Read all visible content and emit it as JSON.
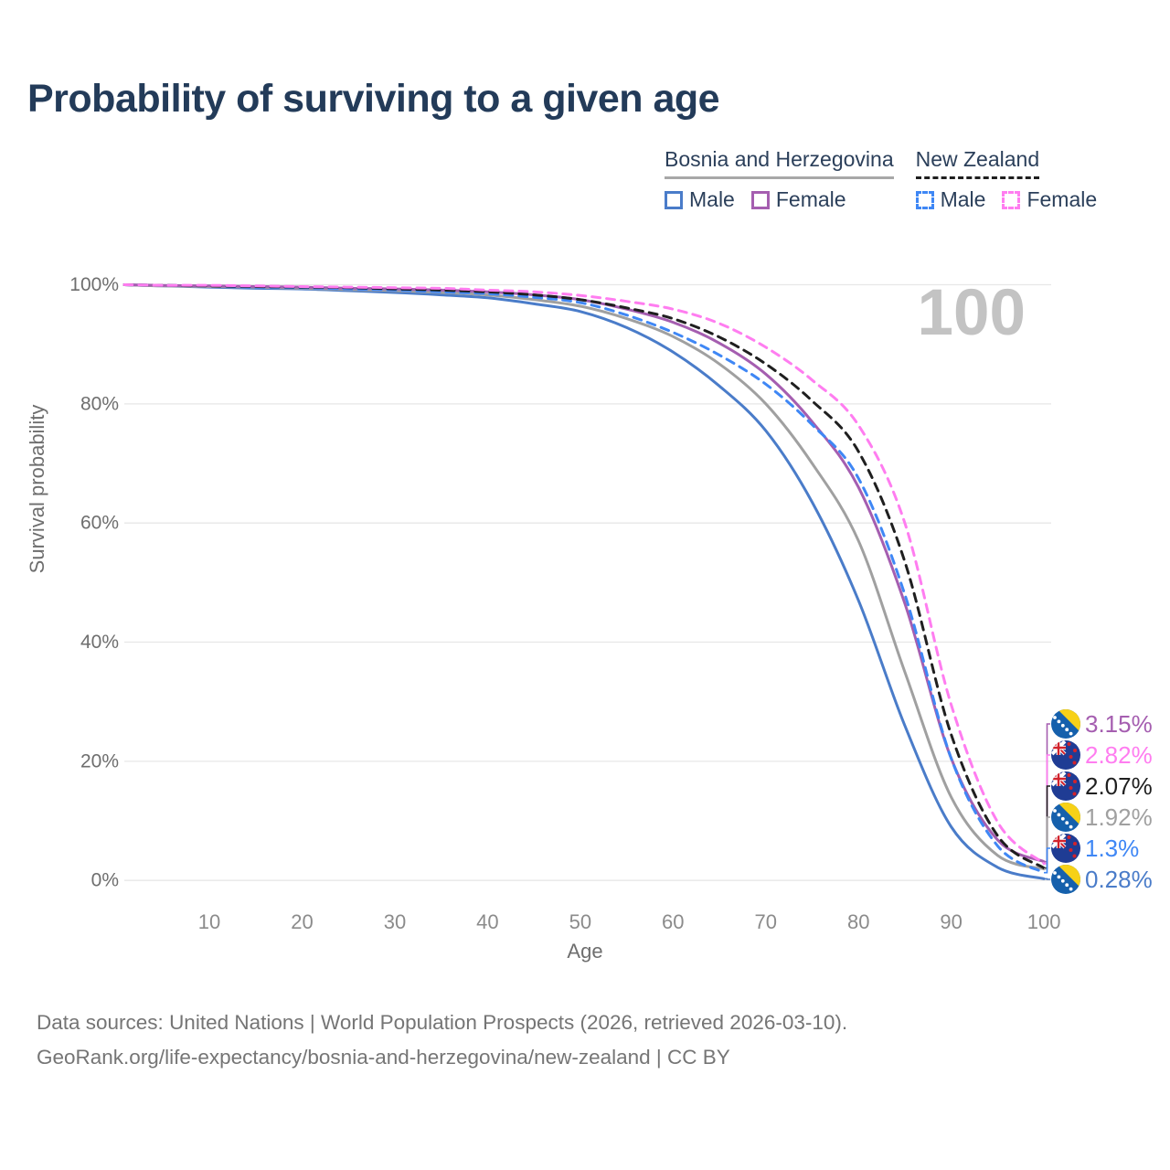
{
  "page": {
    "title": "Probability of surviving to a given age"
  },
  "age_indicator": "100",
  "legend": {
    "groups": [
      {
        "country": "Bosnia and Herzegovina",
        "style": "solid",
        "rule_color": "#a8a8a8",
        "items": [
          {
            "label": "Male",
            "color": "#4a7cc9"
          },
          {
            "label": "Female",
            "color": "#a55eb0"
          }
        ]
      },
      {
        "country": "New Zealand",
        "style": "dashed",
        "rule_color": "#1f1f1f",
        "items": [
          {
            "label": "Male",
            "color": "#3f87f5"
          },
          {
            "label": "Female",
            "color": "#ff7df0"
          }
        ]
      }
    ]
  },
  "chart_data": {
    "type": "line",
    "title": "Probability of surviving to a given age",
    "xlabel": "Age",
    "ylabel": "Survival probability",
    "xlim": [
      0,
      100
    ],
    "ylim": [
      0,
      100
    ],
    "grid": "horizontal",
    "legend_position": "top-right",
    "x_ticks": [
      {
        "value": 10,
        "label": "10"
      },
      {
        "value": 20,
        "label": "20"
      },
      {
        "value": 30,
        "label": "30"
      },
      {
        "value": 40,
        "label": "40"
      },
      {
        "value": 50,
        "label": "50"
      },
      {
        "value": 60,
        "label": "60"
      },
      {
        "value": 70,
        "label": "70"
      },
      {
        "value": 80,
        "label": "80"
      },
      {
        "value": 90,
        "label": "90"
      },
      {
        "value": 100,
        "label": "100"
      }
    ],
    "y_ticks": [
      {
        "value": 0,
        "label": "0%"
      },
      {
        "value": 20,
        "label": "20%"
      },
      {
        "value": 40,
        "label": "40%"
      },
      {
        "value": 60,
        "label": "60%"
      },
      {
        "value": 80,
        "label": "80%"
      },
      {
        "value": 100,
        "label": "100%"
      }
    ],
    "x": [
      0,
      5,
      10,
      15,
      20,
      25,
      30,
      35,
      40,
      45,
      50,
      55,
      60,
      65,
      70,
      75,
      80,
      85,
      90,
      95,
      100
    ],
    "series": [
      {
        "id": "bosnia-male",
        "name": "Bosnia and Herzegovina Male",
        "color": "#4a7cc9",
        "dashed": false,
        "flag": "ba",
        "end_label": "0.28%",
        "end_value": 0.28,
        "values": [
          100,
          99.8,
          99.6,
          99.4,
          99.3,
          99.0,
          98.7,
          98.3,
          97.8,
          96.8,
          95.5,
          92.8,
          88.7,
          83.0,
          75.5,
          63.5,
          47.0,
          26.0,
          9.0,
          2.2,
          0.28
        ]
      },
      {
        "id": "bosnia-total",
        "name": "Bosnia and Herzegovina Total",
        "color": "#a0a0a0",
        "dashed": false,
        "flag": "ba",
        "end_label": "1.92%",
        "end_value": 1.92,
        "values": [
          100,
          99.8,
          99.7,
          99.6,
          99.4,
          99.2,
          99.0,
          98.7,
          98.3,
          97.5,
          96.4,
          94.3,
          91.3,
          86.7,
          80.0,
          70.0,
          57.0,
          35.0,
          14.0,
          4.2,
          1.92
        ]
      },
      {
        "id": "bosnia-female",
        "name": "Bosnia and Herzegovina Female",
        "color": "#a55eb0",
        "dashed": false,
        "flag": "ba",
        "end_label": "3.15%",
        "end_value": 3.15,
        "values": [
          100,
          99.9,
          99.8,
          99.7,
          99.6,
          99.4,
          99.3,
          99.1,
          98.8,
          98.3,
          97.5,
          95.9,
          93.7,
          90.2,
          85.0,
          77.0,
          66.0,
          46.5,
          20.5,
          6.8,
          3.15
        ]
      },
      {
        "id": "new-zealand-male",
        "name": "New Zealand Male",
        "color": "#3f87f5",
        "dashed": true,
        "flag": "nz",
        "end_label": "1.3%",
        "end_value": 1.3,
        "values": [
          100,
          99.9,
          99.8,
          99.6,
          99.5,
          99.3,
          99.1,
          98.8,
          98.5,
          97.9,
          97.0,
          94.9,
          92.0,
          88.2,
          83.3,
          76.5,
          67.5,
          48.0,
          20.5,
          5.8,
          1.3
        ]
      },
      {
        "id": "new-zealand-total",
        "name": "New Zealand Total",
        "color": "#1f1f1f",
        "dashed": true,
        "flag": "nz",
        "end_label": "2.07%",
        "end_value": 2.07,
        "values": [
          100,
          99.9,
          99.8,
          99.7,
          99.6,
          99.5,
          99.3,
          99.1,
          98.8,
          98.3,
          97.5,
          96.1,
          94.3,
          91.2,
          86.7,
          80.5,
          72.0,
          53.5,
          24.5,
          7.5,
          2.07
        ]
      },
      {
        "id": "new-zealand-female",
        "name": "New Zealand Female",
        "color": "#ff7df0",
        "dashed": true,
        "flag": "nz",
        "end_label": "2.82%",
        "end_value": 2.82,
        "values": [
          100,
          99.9,
          99.9,
          99.8,
          99.7,
          99.6,
          99.5,
          99.4,
          99.1,
          98.8,
          98.2,
          97.2,
          95.9,
          93.5,
          89.5,
          84.0,
          76.4,
          60.0,
          29.5,
          9.8,
          2.82
        ]
      }
    ]
  },
  "footer": {
    "line1": "Data sources: United Nations | World Population Prospects (2026, retrieved 2026-03-10).",
    "line2": "GeoRank.org/life-expectancy/bosnia-and-herzegovina/new-zealand | CC BY"
  }
}
